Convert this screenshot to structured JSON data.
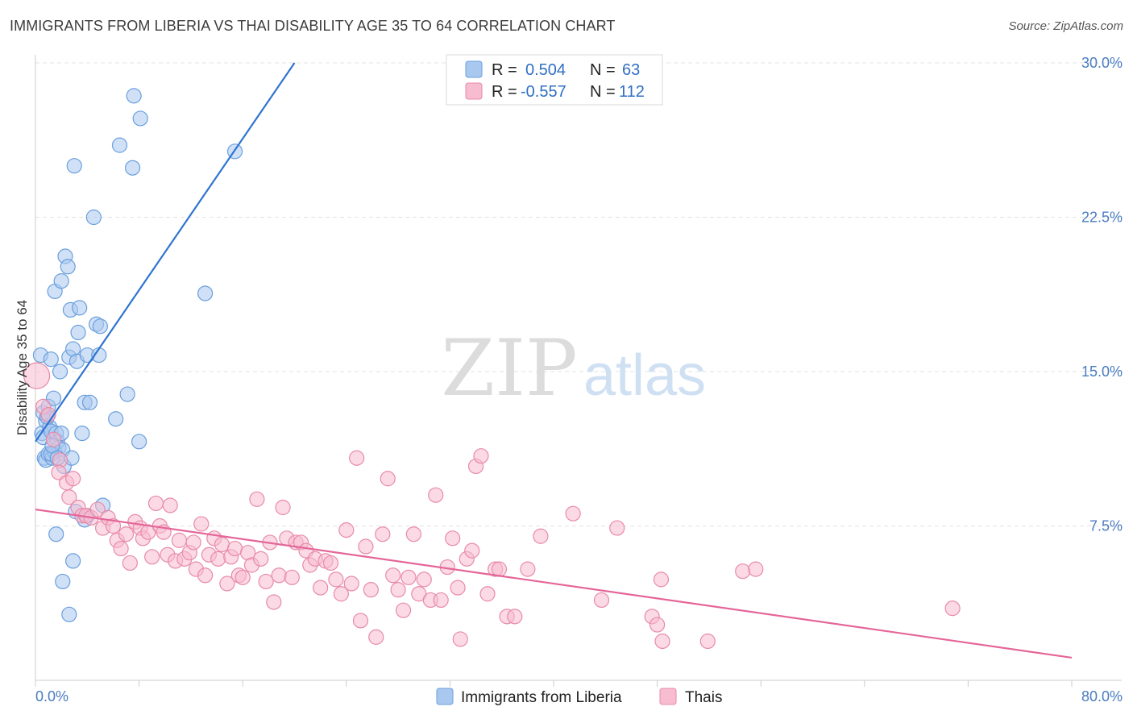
{
  "header": {
    "title": "IMMIGRANTS FROM LIBERIA VS THAI DISABILITY AGE 35 TO 64 CORRELATION CHART",
    "source": "Source: ZipAtlas.com"
  },
  "watermark": {
    "zip": "ZIP",
    "atlas": "atlas"
  },
  "legend": {
    "rows": [
      {
        "r_label": "R =",
        "r_value": "0.504",
        "n_label": "N =",
        "n_value": "63",
        "color": "#a9c8f0",
        "stroke": "#6a9fdc"
      },
      {
        "r_label": "R =",
        "r_value": "-0.557",
        "n_label": "N =",
        "n_value": "112",
        "color": "#f8bcd0",
        "stroke": "#e88aa8"
      }
    ]
  },
  "chart_data": {
    "type": "scatter",
    "title": "IMMIGRANTS FROM LIBERIA VS THAI DISABILITY AGE 35 TO 64 CORRELATION CHART",
    "xlabel": "",
    "ylabel": "Disability Age 35 to 64",
    "xlim": [
      0,
      80
    ],
    "ylim": [
      0,
      30
    ],
    "x_tick_labels": [
      "0.0%",
      "80.0%"
    ],
    "y_ticks": [
      7.5,
      15.0,
      22.5,
      30.0
    ],
    "y_tick_labels": [
      "7.5%",
      "15.0%",
      "22.5%",
      "30.0%"
    ],
    "grid": "horizontal dashed",
    "legend_position": "top-center",
    "series": [
      {
        "name": "Immigrants from Liberia",
        "color": "#a9c8f0",
        "stroke": "#6a9fdc",
        "trend_color": "#2f74d0",
        "trend": {
          "x": [
            0,
            20
          ],
          "y": [
            11.6,
            30.0
          ]
        },
        "points": [
          [
            0.4,
            15.8
          ],
          [
            0.5,
            12.0
          ],
          [
            0.6,
            11.8
          ],
          [
            0.8,
            12.6
          ],
          [
            0.6,
            13.0
          ],
          [
            0.7,
            10.8
          ],
          [
            0.8,
            10.7
          ],
          [
            1.0,
            13.3
          ],
          [
            1.1,
            12.3
          ],
          [
            1.0,
            11.0
          ],
          [
            1.2,
            12.1
          ],
          [
            1.3,
            10.8
          ],
          [
            1.2,
            15.6
          ],
          [
            1.4,
            13.7
          ],
          [
            1.5,
            11.1
          ],
          [
            1.6,
            12.0
          ],
          [
            1.7,
            11.6
          ],
          [
            1.8,
            11.3
          ],
          [
            1.5,
            18.9
          ],
          [
            1.9,
            15.0
          ],
          [
            2.0,
            19.4
          ],
          [
            2.1,
            11.2
          ],
          [
            2.2,
            10.4
          ],
          [
            2.3,
            20.6
          ],
          [
            2.5,
            20.1
          ],
          [
            2.6,
            15.7
          ],
          [
            2.7,
            18.0
          ],
          [
            2.8,
            10.8
          ],
          [
            2.9,
            16.1
          ],
          [
            3.0,
            25.0
          ],
          [
            3.1,
            8.2
          ],
          [
            3.2,
            15.5
          ],
          [
            3.3,
            16.9
          ],
          [
            3.4,
            18.1
          ],
          [
            3.6,
            12.0
          ],
          [
            3.8,
            13.5
          ],
          [
            4.0,
            15.8
          ],
          [
            4.2,
            13.5
          ],
          [
            4.5,
            22.5
          ],
          [
            4.7,
            17.3
          ],
          [
            4.9,
            15.8
          ],
          [
            5.0,
            17.2
          ],
          [
            5.2,
            8.5
          ],
          [
            6.2,
            12.7
          ],
          [
            7.1,
            13.9
          ],
          [
            6.5,
            26.0
          ],
          [
            7.5,
            24.9
          ],
          [
            7.6,
            28.4
          ],
          [
            8.0,
            11.6
          ],
          [
            8.1,
            27.3
          ],
          [
            13.1,
            18.8
          ],
          [
            15.4,
            25.7
          ],
          [
            1.6,
            7.1
          ],
          [
            2.1,
            4.8
          ],
          [
            2.6,
            3.2
          ],
          [
            2.9,
            5.8
          ],
          [
            3.8,
            7.8
          ],
          [
            4.0,
            8.0
          ],
          [
            1.2,
            11.0
          ],
          [
            0.9,
            12.8
          ],
          [
            1.3,
            11.4
          ],
          [
            1.7,
            10.8
          ],
          [
            2.0,
            12.0
          ]
        ]
      },
      {
        "name": "Thais",
        "color": "#f8bcd0",
        "stroke": "#e88aa8",
        "trend_color": "#e4669a",
        "trend": {
          "x": [
            0,
            80
          ],
          "y": [
            8.3,
            1.1
          ]
        },
        "points": [
          [
            0.1,
            14.8
          ],
          [
            0.6,
            13.3
          ],
          [
            1.0,
            12.9
          ],
          [
            1.4,
            11.7
          ],
          [
            1.9,
            10.7
          ],
          [
            1.8,
            10.1
          ],
          [
            2.4,
            9.6
          ],
          [
            2.9,
            9.8
          ],
          [
            2.6,
            8.9
          ],
          [
            3.3,
            8.4
          ],
          [
            3.6,
            8.0
          ],
          [
            3.9,
            8.0
          ],
          [
            4.3,
            7.9
          ],
          [
            4.8,
            8.3
          ],
          [
            5.2,
            7.4
          ],
          [
            5.6,
            7.9
          ],
          [
            6.0,
            7.5
          ],
          [
            6.3,
            6.8
          ],
          [
            6.6,
            6.4
          ],
          [
            7.0,
            7.1
          ],
          [
            7.3,
            5.7
          ],
          [
            7.7,
            7.7
          ],
          [
            8.1,
            7.4
          ],
          [
            8.3,
            6.9
          ],
          [
            8.7,
            7.2
          ],
          [
            9.0,
            6.0
          ],
          [
            9.3,
            8.6
          ],
          [
            9.6,
            7.5
          ],
          [
            9.9,
            7.2
          ],
          [
            10.2,
            6.1
          ],
          [
            10.4,
            8.5
          ],
          [
            10.8,
            5.8
          ],
          [
            11.1,
            6.8
          ],
          [
            11.5,
            5.9
          ],
          [
            11.9,
            6.2
          ],
          [
            12.2,
            6.7
          ],
          [
            12.4,
            5.4
          ],
          [
            12.8,
            7.6
          ],
          [
            13.1,
            5.1
          ],
          [
            13.4,
            6.1
          ],
          [
            13.8,
            6.9
          ],
          [
            14.1,
            5.9
          ],
          [
            14.4,
            6.6
          ],
          [
            14.8,
            4.7
          ],
          [
            15.1,
            6.0
          ],
          [
            15.4,
            6.4
          ],
          [
            15.7,
            5.1
          ],
          [
            16.0,
            5.0
          ],
          [
            16.4,
            6.2
          ],
          [
            16.7,
            5.6
          ],
          [
            17.1,
            8.8
          ],
          [
            17.4,
            5.9
          ],
          [
            17.8,
            4.8
          ],
          [
            18.1,
            6.7
          ],
          [
            18.4,
            3.8
          ],
          [
            18.8,
            5.1
          ],
          [
            19.1,
            8.4
          ],
          [
            19.4,
            6.9
          ],
          [
            19.8,
            5.0
          ],
          [
            20.1,
            6.7
          ],
          [
            20.5,
            6.7
          ],
          [
            20.9,
            6.3
          ],
          [
            21.2,
            5.6
          ],
          [
            21.6,
            5.9
          ],
          [
            22.0,
            4.5
          ],
          [
            22.4,
            5.8
          ],
          [
            22.8,
            5.7
          ],
          [
            23.2,
            4.9
          ],
          [
            23.6,
            4.2
          ],
          [
            24.0,
            7.3
          ],
          [
            24.4,
            4.7
          ],
          [
            24.8,
            10.8
          ],
          [
            25.1,
            2.9
          ],
          [
            25.5,
            6.5
          ],
          [
            25.9,
            4.4
          ],
          [
            26.3,
            2.1
          ],
          [
            26.8,
            7.1
          ],
          [
            27.2,
            9.8
          ],
          [
            27.6,
            5.1
          ],
          [
            28.0,
            4.4
          ],
          [
            28.4,
            3.4
          ],
          [
            28.8,
            5.0
          ],
          [
            29.2,
            7.1
          ],
          [
            29.6,
            4.2
          ],
          [
            30.0,
            4.9
          ],
          [
            30.5,
            3.9
          ],
          [
            30.9,
            9.0
          ],
          [
            31.3,
            3.9
          ],
          [
            31.8,
            5.5
          ],
          [
            32.2,
            6.9
          ],
          [
            32.6,
            4.5
          ],
          [
            32.8,
            2.0
          ],
          [
            33.3,
            5.9
          ],
          [
            33.7,
            6.3
          ],
          [
            34.0,
            10.4
          ],
          [
            34.4,
            10.9
          ],
          [
            34.9,
            4.2
          ],
          [
            35.5,
            5.4
          ],
          [
            35.8,
            5.4
          ],
          [
            36.4,
            3.1
          ],
          [
            37.0,
            3.1
          ],
          [
            38.0,
            5.4
          ],
          [
            39.0,
            7.0
          ],
          [
            41.5,
            8.1
          ],
          [
            43.7,
            3.9
          ],
          [
            44.9,
            7.4
          ],
          [
            47.6,
            3.1
          ],
          [
            48.0,
            2.7
          ],
          [
            48.3,
            4.9
          ],
          [
            48.4,
            1.9
          ],
          [
            51.9,
            1.9
          ],
          [
            54.6,
            5.3
          ],
          [
            55.6,
            5.4
          ],
          [
            70.8,
            3.5
          ]
        ]
      }
    ]
  },
  "bottom_legend": {
    "items": [
      {
        "label": "Immigrants from Liberia",
        "color": "#a9c8f0",
        "stroke": "#6a9fdc"
      },
      {
        "label": "Thais",
        "color": "#f8bcd0",
        "stroke": "#e88aa8"
      }
    ]
  }
}
